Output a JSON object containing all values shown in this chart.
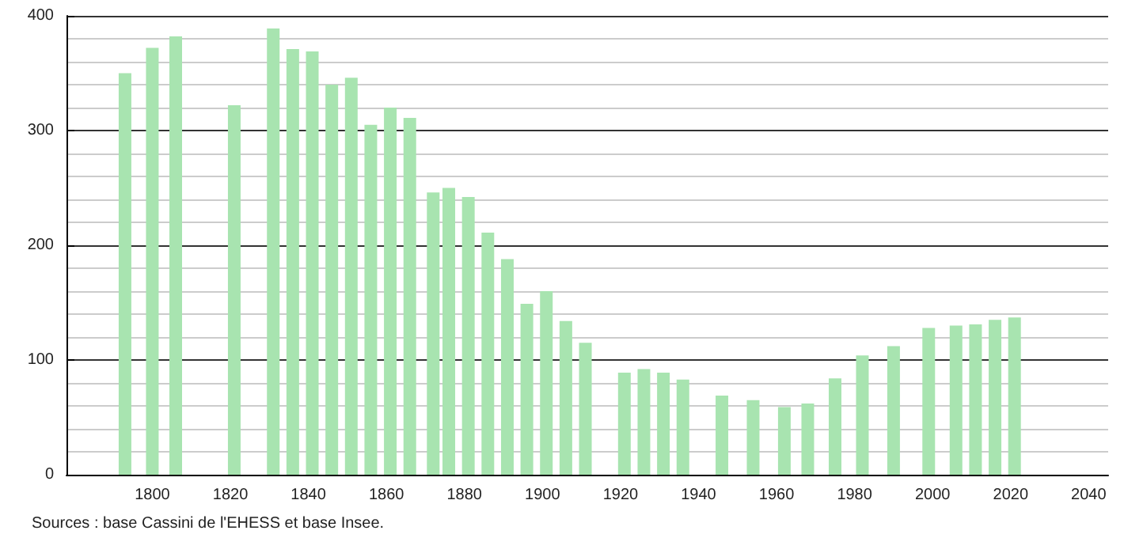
{
  "chart_data": {
    "type": "bar",
    "x": [
      1793,
      1800,
      1806,
      1821,
      1831,
      1836,
      1841,
      1846,
      1851,
      1856,
      1861,
      1866,
      1872,
      1876,
      1881,
      1886,
      1891,
      1896,
      1901,
      1906,
      1911,
      1921,
      1926,
      1931,
      1936,
      1946,
      1954,
      1962,
      1968,
      1975,
      1982,
      1990,
      1999,
      2006,
      2011,
      2016,
      2021
    ],
    "values": [
      350,
      372,
      382,
      322,
      389,
      371,
      369,
      340,
      346,
      305,
      320,
      311,
      246,
      250,
      242,
      211,
      188,
      149,
      160,
      134,
      115,
      89,
      92,
      89,
      83,
      69,
      65,
      59,
      62,
      84,
      104,
      112,
      128,
      130,
      131,
      135,
      137
    ],
    "color": "#a8e4b0",
    "xlim": [
      1778,
      2045
    ],
    "xticks": [
      1800,
      1820,
      1840,
      1860,
      1880,
      1900,
      1920,
      1940,
      1960,
      1980,
      2000,
      2020,
      2040
    ],
    "ylim": [
      0,
      400
    ],
    "yticks": [
      0,
      100,
      200,
      300,
      400
    ],
    "grid": "y",
    "annotations": [
      "Sources : base Cassini de l'EHESS et base Insee."
    ]
  }
}
